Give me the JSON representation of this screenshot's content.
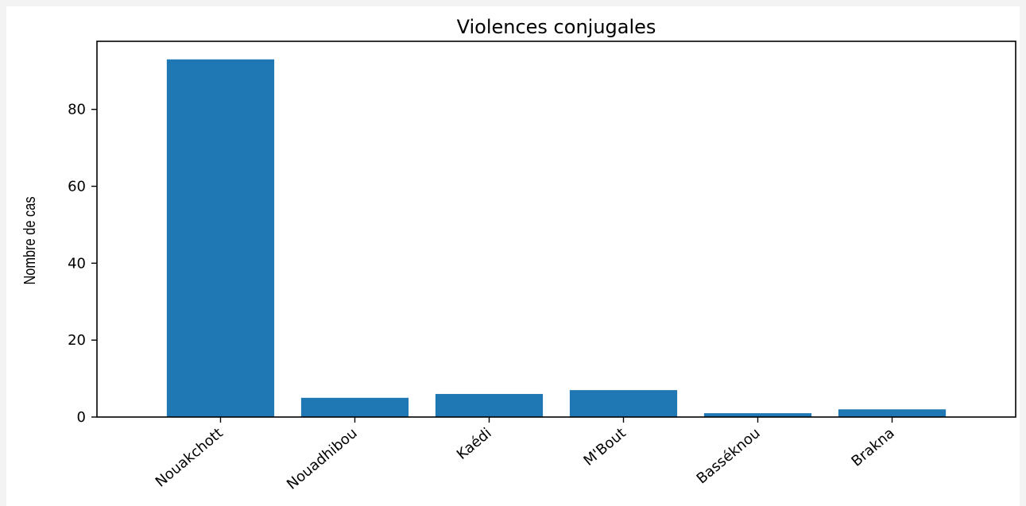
{
  "chart_data": {
    "type": "bar",
    "title": "Violences conjugales",
    "xlabel": "",
    "ylabel": "Nombre de cas",
    "categories": [
      "Nouakchott",
      "Nouadhibou",
      "Kaédi",
      "M'Bout",
      "Basséknou",
      "Brakna"
    ],
    "values": [
      93,
      5,
      6,
      7,
      1,
      2
    ],
    "ylim": [
      0,
      97.7
    ],
    "yticks": [
      0,
      20,
      40,
      60,
      80
    ],
    "bar_color": "#1f77b4",
    "grid": false,
    "legend": "none"
  }
}
